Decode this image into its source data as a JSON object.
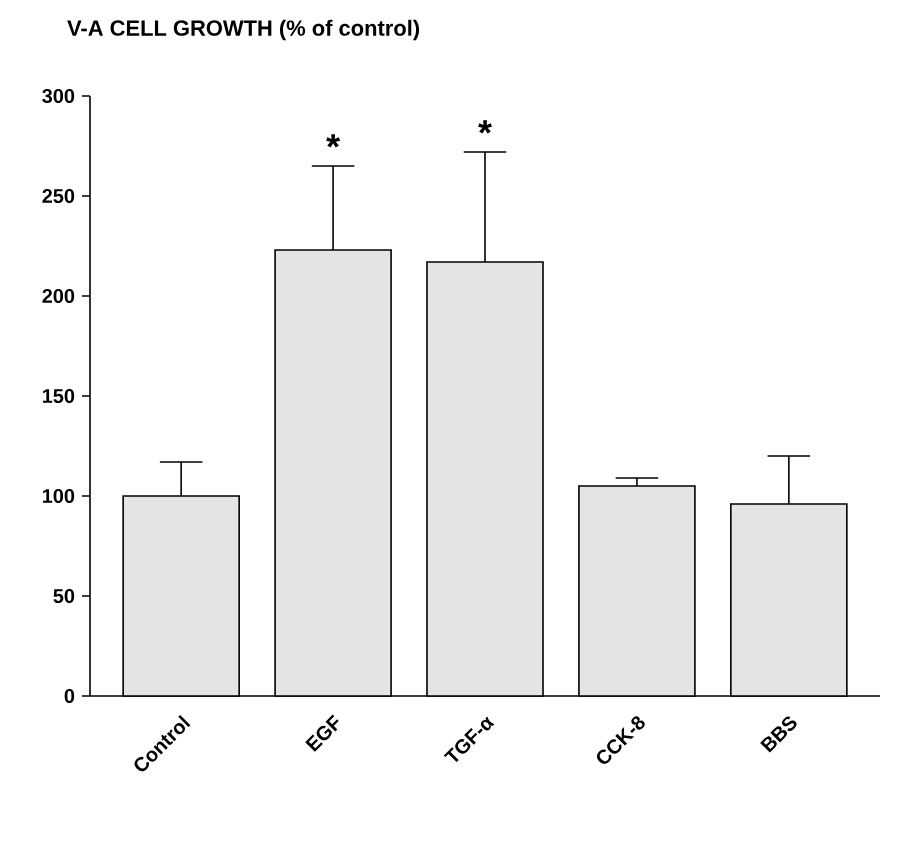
{
  "chart_data": {
    "type": "bar",
    "title": "V-A CELL GROWTH (% of control)",
    "categories": [
      "Control",
      "EGF",
      "TGF-α",
      "CCK-8",
      "BBS"
    ],
    "values": [
      100,
      223,
      217,
      105,
      96
    ],
    "errors": [
      [
        100,
        117
      ],
      [
        223,
        265
      ],
      [
        217,
        272
      ],
      [
        105,
        109
      ],
      [
        96,
        120
      ]
    ],
    "color": "#e4e4e4",
    "ylim": [
      0,
      300
    ],
    "yticks": [
      0,
      50,
      100,
      150,
      200,
      250,
      300
    ],
    "annotations": [
      "*",
      "*"
    ]
  }
}
